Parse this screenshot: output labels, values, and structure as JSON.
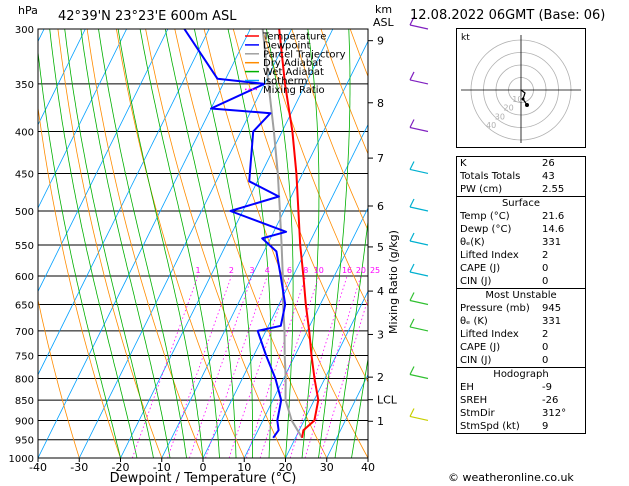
{
  "header": {
    "hpa_label": "hPa",
    "location": "42°39'N  23°23'E  600m  ASL",
    "km_label": "km",
    "asl_label": "ASL",
    "datetime": "12.08.2022  06GMT  (Base: 06)"
  },
  "legend": [
    {
      "label": "Temperature",
      "color": "#ff0000",
      "style": "solid"
    },
    {
      "label": "Dewpoint",
      "color": "#0000ff",
      "style": "solid"
    },
    {
      "label": "Parcel Trajectory",
      "color": "#a0a0a0",
      "style": "solid"
    },
    {
      "label": "Dry Adiabat",
      "color": "#ff8c00",
      "style": "solid"
    },
    {
      "label": "Wet Adiabat",
      "color": "#00b000",
      "style": "solid"
    },
    {
      "label": "Isotherm",
      "color": "#00a0ff",
      "style": "solid"
    },
    {
      "label": "Mixing Ratio",
      "color": "#ff00ff",
      "style": "dotted"
    }
  ],
  "chart_data": {
    "type": "skew-t",
    "xlabel": "Dewpoint / Temperature (°C)",
    "ylabel_right": "Mixing Ratio (g/kg)",
    "x_ticks": [
      -40,
      -30,
      -20,
      -10,
      0,
      10,
      20,
      30,
      40
    ],
    "x_range": [
      -40,
      40
    ],
    "p_range": [
      1000,
      300
    ],
    "pressure_levels": [
      300,
      350,
      400,
      450,
      500,
      550,
      600,
      650,
      700,
      750,
      800,
      850,
      900,
      950,
      1000
    ],
    "km_ticks": [
      {
        "label": "9",
        "p": 310
      },
      {
        "label": "8",
        "p": 369
      },
      {
        "label": "7",
        "p": 431
      },
      {
        "label": "6",
        "p": 493
      },
      {
        "label": "5",
        "p": 553
      },
      {
        "label": "4",
        "p": 626
      },
      {
        "label": "3",
        "p": 707
      },
      {
        "label": "2",
        "p": 797
      },
      {
        "label": "LCL",
        "p": 849
      },
      {
        "label": "1",
        "p": 902
      }
    ],
    "mixing_ratio_labels": [
      "1",
      "2",
      "3",
      "4",
      "6",
      "8",
      "10",
      "16",
      "20",
      "25"
    ],
    "mixing_ratio_values": [
      1,
      2,
      3,
      4,
      6,
      8,
      10,
      16,
      20,
      25
    ],
    "colors": {
      "temperature": "#ff0000",
      "dewpoint": "#0000ff",
      "parcel": "#a0a0a0",
      "dry_adiabat": "#ff8c00",
      "wet_adiabat": "#00b000",
      "isotherm": "#00a0ff",
      "mixing_ratio": "#ff00ff"
    },
    "temperature": [
      {
        "p": 945,
        "t": 21.6
      },
      {
        "p": 925,
        "t": 21.0
      },
      {
        "p": 900,
        "t": 22.5
      },
      {
        "p": 850,
        "t": 21.0
      },
      {
        "p": 800,
        "t": 17.5
      },
      {
        "p": 750,
        "t": 14.0
      },
      {
        "p": 700,
        "t": 10.5
      },
      {
        "p": 650,
        "t": 6.5
      },
      {
        "p": 600,
        "t": 2.5
      },
      {
        "p": 550,
        "t": -2.0
      },
      {
        "p": 500,
        "t": -6.5
      },
      {
        "p": 450,
        "t": -11.5
      },
      {
        "p": 400,
        "t": -17.5
      },
      {
        "p": 350,
        "t": -25.0
      },
      {
        "p": 300,
        "t": -33.0
      }
    ],
    "dewpoint": [
      {
        "p": 945,
        "t": 14.6
      },
      {
        "p": 925,
        "t": 15.0
      },
      {
        "p": 900,
        "t": 13.5
      },
      {
        "p": 850,
        "t": 12.0
      },
      {
        "p": 800,
        "t": 8.0
      },
      {
        "p": 750,
        "t": 3.0
      },
      {
        "p": 700,
        "t": -2.0
      },
      {
        "p": 690,
        "t": 3.0
      },
      {
        "p": 650,
        "t": 1.5
      },
      {
        "p": 600,
        "t": -3.0
      },
      {
        "p": 560,
        "t": -7.0
      },
      {
        "p": 540,
        "t": -12.0
      },
      {
        "p": 530,
        "t": -7.0
      },
      {
        "p": 500,
        "t": -23.0
      },
      {
        "p": 480,
        "t": -13.0
      },
      {
        "p": 460,
        "t": -22.0
      },
      {
        "p": 400,
        "t": -27.0
      },
      {
        "p": 380,
        "t": -25.0
      },
      {
        "p": 375,
        "t": -40.0
      },
      {
        "p": 350,
        "t": -30.0
      },
      {
        "p": 345,
        "t": -42.0
      },
      {
        "p": 300,
        "t": -56.0
      }
    ],
    "parcel": [
      {
        "p": 945,
        "t": 21.6
      },
      {
        "p": 900,
        "t": 17.0
      },
      {
        "p": 849,
        "t": 13.0
      },
      {
        "p": 800,
        "t": 10.5
      },
      {
        "p": 750,
        "t": 7.5
      },
      {
        "p": 700,
        "t": 4.5
      },
      {
        "p": 650,
        "t": 1.0
      },
      {
        "p": 600,
        "t": -2.5
      },
      {
        "p": 550,
        "t": -6.5
      },
      {
        "p": 500,
        "t": -11.0
      },
      {
        "p": 450,
        "t": -16.0
      },
      {
        "p": 400,
        "t": -22.0
      },
      {
        "p": 350,
        "t": -29.0
      },
      {
        "p": 300,
        "t": -37.0
      }
    ],
    "wind_barb_pressures": [
      300,
      350,
      400,
      450,
      500,
      550,
      600,
      650,
      700,
      800,
      900
    ]
  },
  "hodograph": {
    "unit_label": "kt",
    "ring_labels": [
      "10",
      "20",
      "30",
      "40"
    ]
  },
  "indices": {
    "rows": [
      {
        "label": "K",
        "value": "26"
      },
      {
        "label": "Totals Totals",
        "value": "43"
      },
      {
        "label": "PW (cm)",
        "value": "2.55"
      }
    ],
    "surface": {
      "title": "Surface",
      "rows": [
        {
          "label": "Temp (°C)",
          "value": "21.6"
        },
        {
          "label": "Dewp (°C)",
          "value": "14.6"
        },
        {
          "label": "θₑ(K)",
          "value": "331"
        },
        {
          "label": "Lifted Index",
          "value": "2"
        },
        {
          "label": "CAPE (J)",
          "value": "0"
        },
        {
          "label": "CIN (J)",
          "value": "0"
        }
      ]
    },
    "most_unstable": {
      "title": "Most Unstable",
      "rows": [
        {
          "label": "Pressure (mb)",
          "value": "945"
        },
        {
          "label": "θₑ (K)",
          "value": "331"
        },
        {
          "label": "Lifted Index",
          "value": "2"
        },
        {
          "label": "CAPE (J)",
          "value": "0"
        },
        {
          "label": "CIN (J)",
          "value": "0"
        }
      ]
    },
    "hodograph_params": {
      "title": "Hodograph",
      "rows": [
        {
          "label": "EH",
          "value": "-9"
        },
        {
          "label": "SREH",
          "value": "-26"
        },
        {
          "label": "StmDir",
          "value": "312°"
        },
        {
          "label": "StmSpd (kt)",
          "value": "9"
        }
      ]
    }
  },
  "copyright": "© weatheronline.co.uk"
}
